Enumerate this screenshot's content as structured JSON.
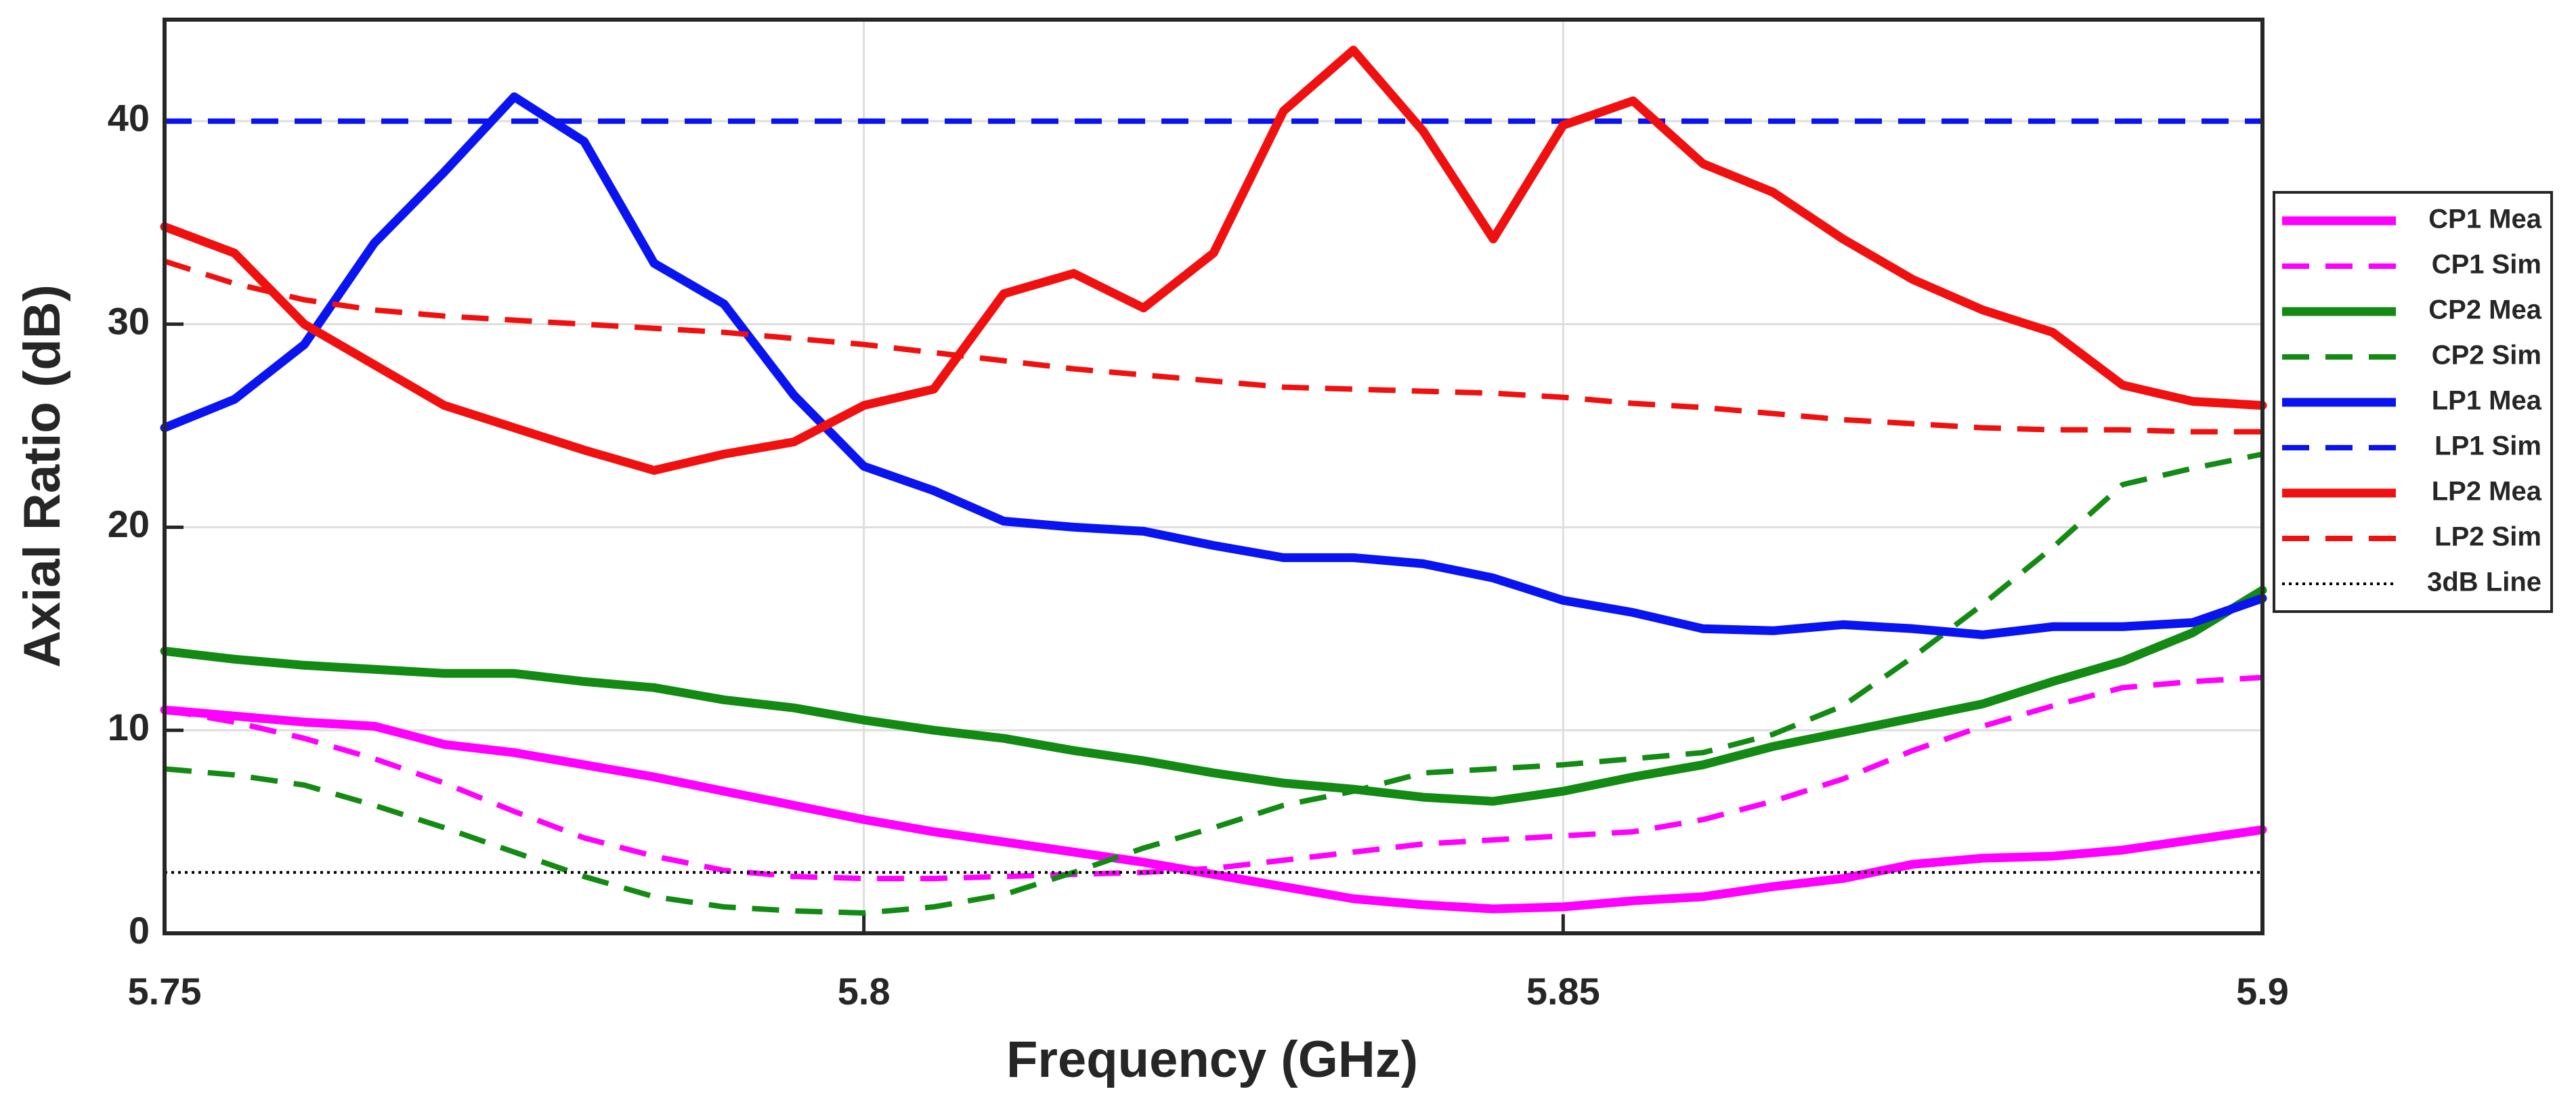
{
  "chart_data": {
    "type": "line",
    "xlabel": "Frequency (GHz)",
    "ylabel": "Axial Ratio (dB)",
    "x": [
      5.75,
      5.755,
      5.76,
      5.765,
      5.77,
      5.775,
      5.78,
      5.785,
      5.79,
      5.795,
      5.8,
      5.805,
      5.81,
      5.815,
      5.82,
      5.825,
      5.83,
      5.835,
      5.84,
      5.845,
      5.85,
      5.855,
      5.86,
      5.865,
      5.87,
      5.875,
      5.88,
      5.885,
      5.89,
      5.895,
      5.9
    ],
    "xlim": [
      5.75,
      5.9
    ],
    "xticks": [
      5.75,
      5.8,
      5.85,
      5.9
    ],
    "ylim": [
      0,
      45
    ],
    "yticks": [
      0,
      10,
      20,
      30,
      40
    ],
    "grid": true,
    "legend": "right",
    "series": [
      {
        "name": "CP1 Mea",
        "color": "#ff00ff",
        "linestyle": "solid",
        "values": [
          11,
          10.7,
          10.4,
          10.2,
          9.3,
          8.9,
          8.3,
          7.7,
          7.0,
          6.3,
          5.6,
          5.0,
          4.5,
          4.0,
          3.5,
          2.9,
          2.3,
          1.7,
          1.4,
          1.2,
          1.3,
          1.6,
          1.8,
          2.3,
          2.7,
          3.4,
          3.7,
          3.8,
          4.1,
          4.6,
          5.1
        ]
      },
      {
        "name": "CP1 Sim",
        "color": "#ff00ff",
        "linestyle": "dashed",
        "values": [
          11,
          10.4,
          9.6,
          8.6,
          7.4,
          6.0,
          4.7,
          3.8,
          3.1,
          2.8,
          2.7,
          2.7,
          2.8,
          2.9,
          3.0,
          3.2,
          3.6,
          4.0,
          4.4,
          4.6,
          4.8,
          5.0,
          5.6,
          6.5,
          7.6,
          9.0,
          10.2,
          11.2,
          12.1,
          12.4,
          12.6
        ]
      },
      {
        "name": "CP2 Mea",
        "color": "#138a13",
        "linestyle": "solid",
        "values": [
          13.9,
          13.5,
          13.2,
          13.0,
          12.8,
          12.8,
          12.4,
          12.1,
          11.5,
          11.1,
          10.5,
          10.0,
          9.6,
          9.0,
          8.5,
          7.9,
          7.4,
          7.1,
          6.7,
          6.5,
          7.0,
          7.7,
          8.3,
          9.2,
          9.9,
          10.6,
          11.3,
          12.4,
          13.4,
          14.8,
          16.9
        ]
      },
      {
        "name": "CP2 Sim",
        "color": "#138a13",
        "linestyle": "dashed",
        "values": [
          8.1,
          7.8,
          7.3,
          6.3,
          5.2,
          4.0,
          2.8,
          1.8,
          1.3,
          1.1,
          1.0,
          1.3,
          1.9,
          3.0,
          4.2,
          5.2,
          6.3,
          7.0,
          7.9,
          8.1,
          8.3,
          8.6,
          8.9,
          9.8,
          11.2,
          13.6,
          16.2,
          19.0,
          22.1,
          22.9,
          23.6
        ]
      },
      {
        "name": "LP1 Mea",
        "color": "#0a14f0",
        "linestyle": "solid",
        "values": [
          24.9,
          26.3,
          29,
          34,
          37.5,
          41.2,
          39,
          33,
          31,
          26.5,
          23,
          21.8,
          20.3,
          20.0,
          19.8,
          19.1,
          18.5,
          18.5,
          18.2,
          17.5,
          16.4,
          15.8,
          15.0,
          14.9,
          15.2,
          15.0,
          14.7,
          15.1,
          15.1,
          15.3,
          16.5
        ]
      },
      {
        "name": "LP1 Sim",
        "color": "#0a14f0",
        "linestyle": "dashed",
        "values": [
          40,
          40,
          40,
          40,
          40,
          40,
          40,
          40,
          40,
          40,
          40,
          40,
          40,
          40,
          40,
          40,
          40,
          40,
          40,
          40,
          40,
          40,
          40,
          40,
          40,
          40,
          40,
          40,
          40,
          40,
          40
        ]
      },
      {
        "name": "LP2 Mea",
        "color": "#f01010",
        "linestyle": "solid",
        "values": [
          34.8,
          33.5,
          30,
          28,
          26,
          24.9,
          23.8,
          22.8,
          23.6,
          24.2,
          26,
          26.8,
          31.5,
          32.5,
          30.8,
          33.5,
          40.5,
          43.5,
          39.5,
          34.2,
          39.8,
          41,
          37.9,
          36.5,
          34.2,
          32.2,
          30.7,
          29.6,
          27,
          26.2,
          26.0
        ]
      },
      {
        "name": "LP2 Sim",
        "color": "#f01010",
        "linestyle": "dashed",
        "values": [
          33.1,
          32,
          31.2,
          30.7,
          30.4,
          30.2,
          30.0,
          29.8,
          29.6,
          29.3,
          29.0,
          28.6,
          28.2,
          27.8,
          27.5,
          27.2,
          26.9,
          26.8,
          26.7,
          26.6,
          26.4,
          26.1,
          25.9,
          25.6,
          25.3,
          25.1,
          24.9,
          24.8,
          24.8,
          24.7,
          24.7
        ]
      },
      {
        "name": "3dB Line",
        "color": "#000000",
        "linestyle": "dotted",
        "values": [
          3,
          3,
          3,
          3,
          3,
          3,
          3,
          3,
          3,
          3,
          3,
          3,
          3,
          3,
          3,
          3,
          3,
          3,
          3,
          3,
          3,
          3,
          3,
          3,
          3,
          3,
          3,
          3,
          3,
          3,
          3
        ]
      }
    ]
  }
}
